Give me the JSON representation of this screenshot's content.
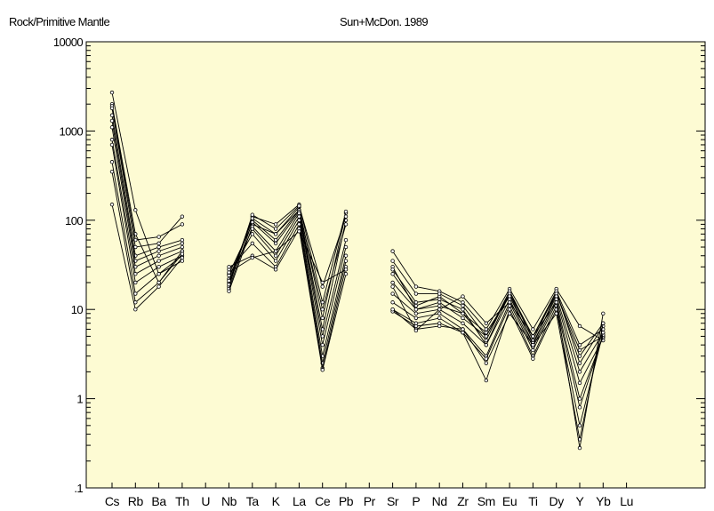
{
  "chart_data": {
    "type": "line",
    "title": "Sun+McDon. 1989",
    "ylabel": "Rock/Primitive Mantle",
    "xlabel": "",
    "yscale": "log",
    "ylim": [
      0.1,
      10000
    ],
    "yticks": [
      0.1,
      1,
      10,
      100,
      1000,
      10000
    ],
    "ytick_labels": [
      ".1",
      "1",
      "10",
      "100",
      "1000",
      "10000"
    ],
    "categories": [
      "Cs",
      "Rb",
      "Ba",
      "Th",
      "U",
      "Nb",
      "Ta",
      "K",
      "La",
      "Ce",
      "Pb",
      "Pr",
      "Sr",
      "P",
      "Nd",
      "Zr",
      "Sm",
      "Eu",
      "Ti",
      "Dy",
      "Y",
      "Yb",
      "Lu"
    ],
    "colors": {
      "background": "#fdfbd3",
      "line": "#000000"
    },
    "series": [
      {
        "values": [
          2700,
          130,
          25,
          40,
          null,
          25,
          90,
          70,
          140,
          8,
          120,
          null,
          30,
          10,
          12,
          8,
          5,
          15,
          5,
          15,
          3,
          7,
          null
        ]
      },
      {
        "values": [
          2000,
          70,
          20,
          45,
          null,
          22,
          100,
          60,
          130,
          6,
          100,
          null,
          25,
          11,
          14,
          9,
          4.5,
          16,
          4.5,
          16,
          2.5,
          6.5,
          null
        ]
      },
      {
        "values": [
          1900,
          60,
          65,
          90,
          null,
          20,
          110,
          90,
          150,
          12,
          125,
          null,
          45,
          18,
          16,
          12,
          6,
          17,
          6,
          17,
          6.5,
          4.5,
          null
        ]
      },
      {
        "values": [
          1800,
          50,
          55,
          110,
          null,
          18,
          115,
          80,
          145,
          18,
          110,
          null,
          35,
          15,
          15,
          11,
          5,
          16,
          5,
          16,
          4,
          6,
          null
        ]
      },
      {
        "values": [
          1500,
          40,
          50,
          60,
          null,
          19,
          105,
          70,
          130,
          10,
          90,
          null,
          28,
          12,
          13,
          10,
          4,
          15,
          4,
          15,
          3.5,
          5,
          null
        ]
      },
      {
        "values": [
          1300,
          35,
          45,
          55,
          null,
          17,
          95,
          55,
          125,
          5,
          60,
          null,
          20,
          10,
          11,
          9,
          5.5,
          14,
          4.2,
          14,
          2,
          5.5,
          null
        ]
      },
      {
        "values": [
          1100,
          30,
          40,
          50,
          null,
          16,
          85,
          45,
          120,
          4,
          50,
          null,
          15,
          9,
          10,
          7,
          4,
          13,
          3.8,
          13,
          1.5,
          4.8,
          null
        ]
      },
      {
        "values": [
          800,
          25,
          35,
          45,
          null,
          21,
          80,
          40,
          110,
          3,
          40,
          null,
          12,
          8,
          9,
          6,
          3,
          12,
          3.5,
          12,
          1,
          5,
          null
        ]
      },
      {
        "values": [
          700,
          20,
          30,
          40,
          null,
          24,
          70,
          35,
          100,
          2.5,
          35,
          null,
          10,
          7,
          8,
          5.5,
          2.8,
          11,
          3,
          11,
          0.8,
          5.2,
          null
        ]
      },
      {
        "values": [
          450,
          15,
          25,
          35,
          null,
          28,
          55,
          30,
          90,
          2.2,
          30,
          null,
          9.5,
          6.5,
          7,
          5.5,
          1.6,
          10,
          2.8,
          10,
          0.5,
          5.5,
          null
        ]
      },
      {
        "values": [
          350,
          12,
          20,
          42,
          null,
          30,
          40,
          28,
          80,
          2.1,
          25,
          null,
          10,
          6,
          6.5,
          6,
          2.5,
          9,
          4,
          9,
          0.35,
          7,
          null
        ]
      },
      {
        "values": [
          150,
          10,
          18,
          38,
          null,
          26,
          38,
          45,
          75,
          20,
          28,
          null,
          18,
          5.8,
          10,
          14,
          7,
          12,
          5,
          12,
          0.28,
          9,
          null
        ]
      }
    ]
  }
}
